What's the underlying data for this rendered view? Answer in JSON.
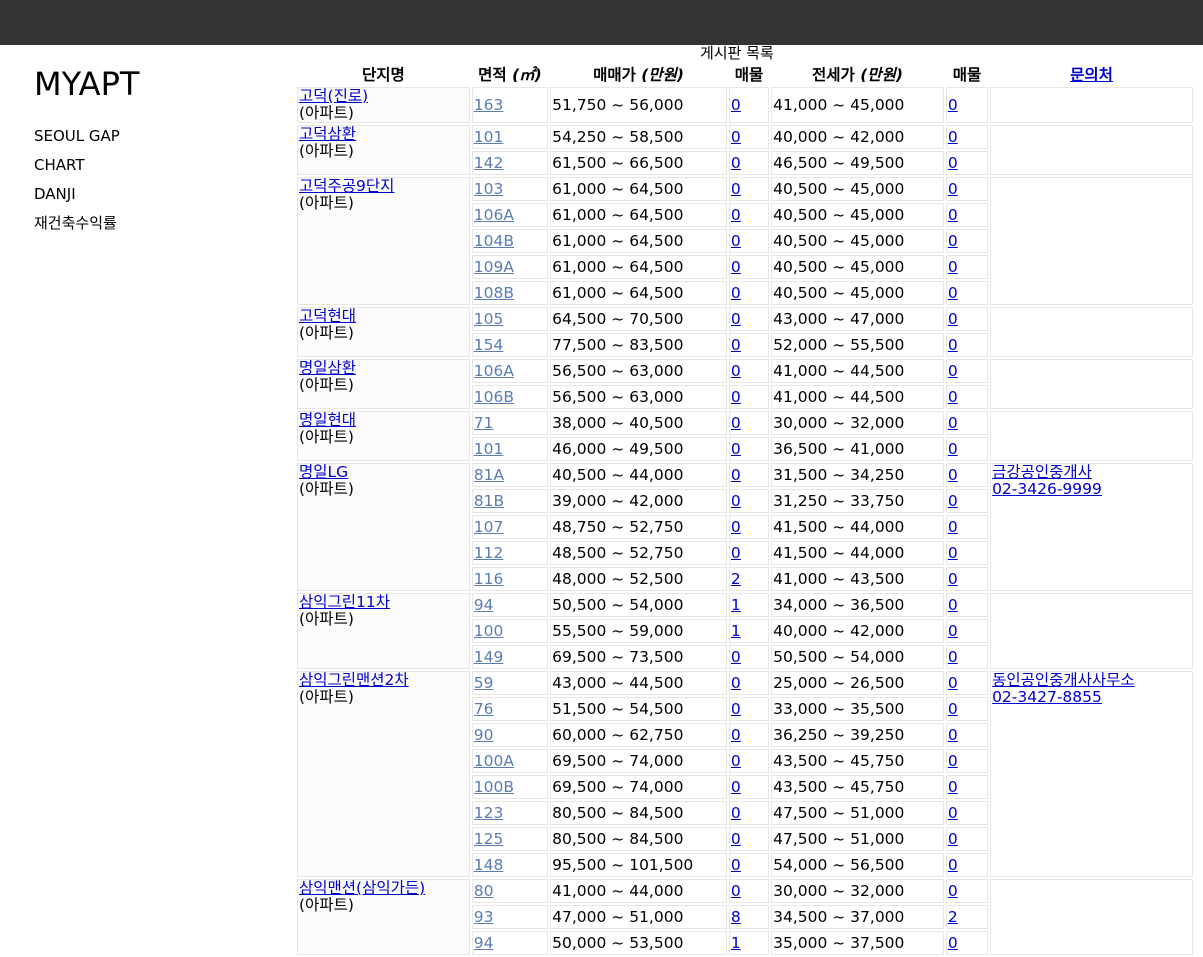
{
  "brand": "MYAPT",
  "nav": [
    "SEOUL GAP",
    "CHART",
    "DANJI",
    "재건축수익률"
  ],
  "board_caption": "게시판 목록",
  "headers": {
    "complex": "단지명",
    "area": "면적",
    "area_unit": "(㎡)",
    "sale": "매매가",
    "sale_unit": "(만원)",
    "sale_count": "매물",
    "jeonse": "전세가",
    "jeonse_unit": "(만원)",
    "jeonse_count": "매물",
    "contact": "문의처"
  },
  "groups": [
    {
      "name": "고덕(진로)",
      "type": "(아파트)",
      "contact_name": "",
      "contact_phone": "",
      "rows": [
        [
          "163",
          "51,750 ~ 56,000",
          "0",
          "41,000 ~ 45,000",
          "0"
        ]
      ]
    },
    {
      "name": "고덕삼환",
      "type": "(아파트)",
      "contact_name": "",
      "contact_phone": "",
      "rows": [
        [
          "101",
          "54,250 ~ 58,500",
          "0",
          "40,000 ~ 42,000",
          "0"
        ],
        [
          "142",
          "61,500 ~ 66,500",
          "0",
          "46,500 ~ 49,500",
          "0"
        ]
      ]
    },
    {
      "name": "고덕주공9단지",
      "type": "(아파트)",
      "contact_name": "",
      "contact_phone": "",
      "rows": [
        [
          "103",
          "61,000 ~ 64,500",
          "0",
          "40,500 ~ 45,000",
          "0"
        ],
        [
          "106A",
          "61,000 ~ 64,500",
          "0",
          "40,500 ~ 45,000",
          "0"
        ],
        [
          "104B",
          "61,000 ~ 64,500",
          "0",
          "40,500 ~ 45,000",
          "0"
        ],
        [
          "109A",
          "61,000 ~ 64,500",
          "0",
          "40,500 ~ 45,000",
          "0"
        ],
        [
          "108B",
          "61,000 ~ 64,500",
          "0",
          "40,500 ~ 45,000",
          "0"
        ]
      ]
    },
    {
      "name": "고덕현대",
      "type": "(아파트)",
      "contact_name": "",
      "contact_phone": "",
      "rows": [
        [
          "105",
          "64,500 ~ 70,500",
          "0",
          "43,000 ~ 47,000",
          "0"
        ],
        [
          "154",
          "77,500 ~ 83,500",
          "0",
          "52,000 ~ 55,500",
          "0"
        ]
      ]
    },
    {
      "name": "명일삼환",
      "type": "(아파트)",
      "contact_name": "",
      "contact_phone": "",
      "rows": [
        [
          "106A",
          "56,500 ~ 63,000",
          "0",
          "41,000 ~ 44,500",
          "0"
        ],
        [
          "106B",
          "56,500 ~ 63,000",
          "0",
          "41,000 ~ 44,500",
          "0"
        ]
      ]
    },
    {
      "name": "명일현대",
      "type": "(아파트)",
      "contact_name": "",
      "contact_phone": "",
      "rows": [
        [
          "71",
          "38,000 ~ 40,500",
          "0",
          "30,000 ~ 32,000",
          "0"
        ],
        [
          "101",
          "46,000 ~ 49,500",
          "0",
          "36,500 ~ 41,000",
          "0"
        ]
      ]
    },
    {
      "name": "명일LG",
      "type": "(아파트)",
      "contact_name": "금강공인중개사",
      "contact_phone": "02-3426-9999",
      "rows": [
        [
          "81A",
          "40,500 ~ 44,000",
          "0",
          "31,500 ~ 34,250",
          "0"
        ],
        [
          "81B",
          "39,000 ~ 42,000",
          "0",
          "31,250 ~ 33,750",
          "0"
        ],
        [
          "107",
          "48,750 ~ 52,750",
          "0",
          "41,500 ~ 44,000",
          "0"
        ],
        [
          "112",
          "48,500 ~ 52,750",
          "0",
          "41,500 ~ 44,000",
          "0"
        ],
        [
          "116",
          "48,000 ~ 52,500",
          "2",
          "41,000 ~ 43,500",
          "0"
        ]
      ]
    },
    {
      "name": "삼익그린11차",
      "type": "(아파트)",
      "contact_name": "",
      "contact_phone": "",
      "rows": [
        [
          "94",
          "50,500 ~ 54,000",
          "1",
          "34,000 ~ 36,500",
          "0"
        ],
        [
          "100",
          "55,500 ~ 59,000",
          "1",
          "40,000 ~ 42,000",
          "0"
        ],
        [
          "149",
          "69,500 ~ 73,500",
          "0",
          "50,500 ~ 54,000",
          "0"
        ]
      ]
    },
    {
      "name": "삼익그린맨션2차",
      "type": "(아파트)",
      "contact_name": "동인공인중개사사무소",
      "contact_phone": "02-3427-8855",
      "rows": [
        [
          "59",
          "43,000 ~ 44,500",
          "0",
          "25,000 ~ 26,500",
          "0"
        ],
        [
          "76",
          "51,500 ~ 54,500",
          "0",
          "33,000 ~ 35,500",
          "0"
        ],
        [
          "90",
          "60,000 ~ 62,750",
          "0",
          "36,250 ~ 39,250",
          "0"
        ],
        [
          "100A",
          "69,500 ~ 74,000",
          "0",
          "43,500 ~ 45,750",
          "0"
        ],
        [
          "100B",
          "69,500 ~ 74,000",
          "0",
          "43,500 ~ 45,750",
          "0"
        ],
        [
          "123",
          "80,500 ~ 84,500",
          "0",
          "47,500 ~ 51,000",
          "0"
        ],
        [
          "125",
          "80,500 ~ 84,500",
          "0",
          "47,500 ~ 51,000",
          "0"
        ],
        [
          "148",
          "95,500 ~ 101,500",
          "0",
          "54,000 ~ 56,500",
          "0"
        ]
      ]
    },
    {
      "name": "삼익맨션(삼익가든)",
      "type": "(아파트)",
      "contact_name": "",
      "contact_phone": "",
      "rows": [
        [
          "80",
          "41,000 ~ 44,000",
          "0",
          "30,000 ~ 32,000",
          "0"
        ],
        [
          "93",
          "47,000 ~ 51,000",
          "8",
          "34,500 ~ 37,000",
          "2"
        ],
        [
          "94",
          "50,000 ~ 53,500",
          "1",
          "35,000 ~ 37,500",
          "0"
        ]
      ]
    }
  ]
}
